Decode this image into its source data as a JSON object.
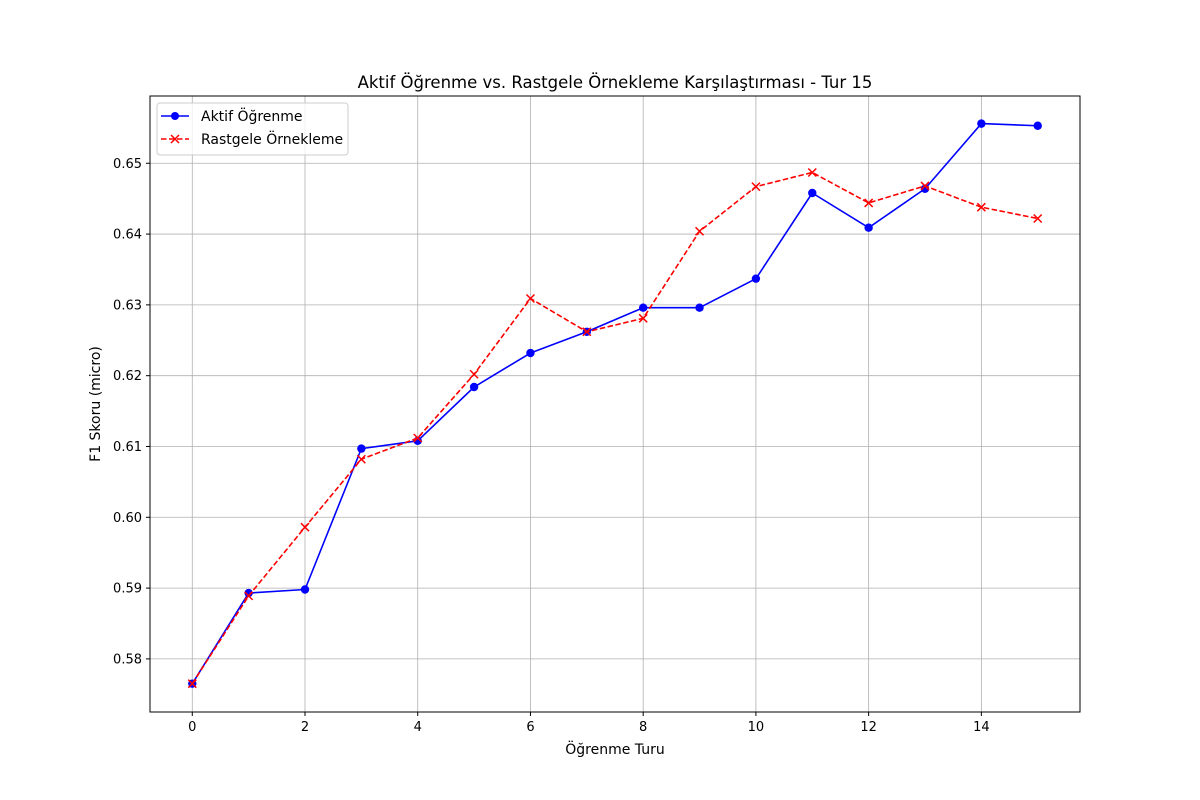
{
  "chart_data": {
    "type": "line",
    "title": "Aktif Öğrenme vs. Rastgele Örnekleme Karşılaştırması - Tur 15",
    "xlabel": "Öğrenme Turu",
    "ylabel": "F1 Skoru (micro)",
    "x": [
      0,
      1,
      2,
      3,
      4,
      5,
      6,
      7,
      8,
      9,
      10,
      11,
      12,
      13,
      14,
      15
    ],
    "xlim": [
      -0.75,
      15.75
    ],
    "ylim": [
      0.5725,
      0.6595
    ],
    "xticks": [
      0,
      2,
      4,
      6,
      8,
      10,
      12,
      14
    ],
    "xtick_labels": [
      "0",
      "2",
      "4",
      "6",
      "8",
      "10",
      "12",
      "14"
    ],
    "yticks": [
      0.58,
      0.59,
      0.6,
      0.61,
      0.62,
      0.63,
      0.64,
      0.65
    ],
    "ytick_labels": [
      "0.58",
      "0.59",
      "0.60",
      "0.61",
      "0.62",
      "0.63",
      "0.64",
      "0.65"
    ],
    "grid": true,
    "legend_position": "top-left",
    "series": [
      {
        "name": "Aktif Öğrenme",
        "color": "#0000ff",
        "linestyle": "solid",
        "marker": "circle",
        "values": [
          0.5765,
          0.5893,
          0.5898,
          0.6097,
          0.6108,
          0.6184,
          0.6232,
          0.6262,
          0.6296,
          0.6296,
          0.6337,
          0.6458,
          0.6409,
          0.6464,
          0.6556,
          0.6553
        ]
      },
      {
        "name": "Rastgele Örnekleme",
        "color": "#ff0000",
        "linestyle": "dashed",
        "marker": "x",
        "values": [
          0.5765,
          0.5889,
          0.5986,
          0.6082,
          0.6112,
          0.6202,
          0.6309,
          0.6262,
          0.6281,
          0.6404,
          0.6467,
          0.6487,
          0.6444,
          0.6468,
          0.6438,
          0.6422
        ]
      }
    ]
  }
}
